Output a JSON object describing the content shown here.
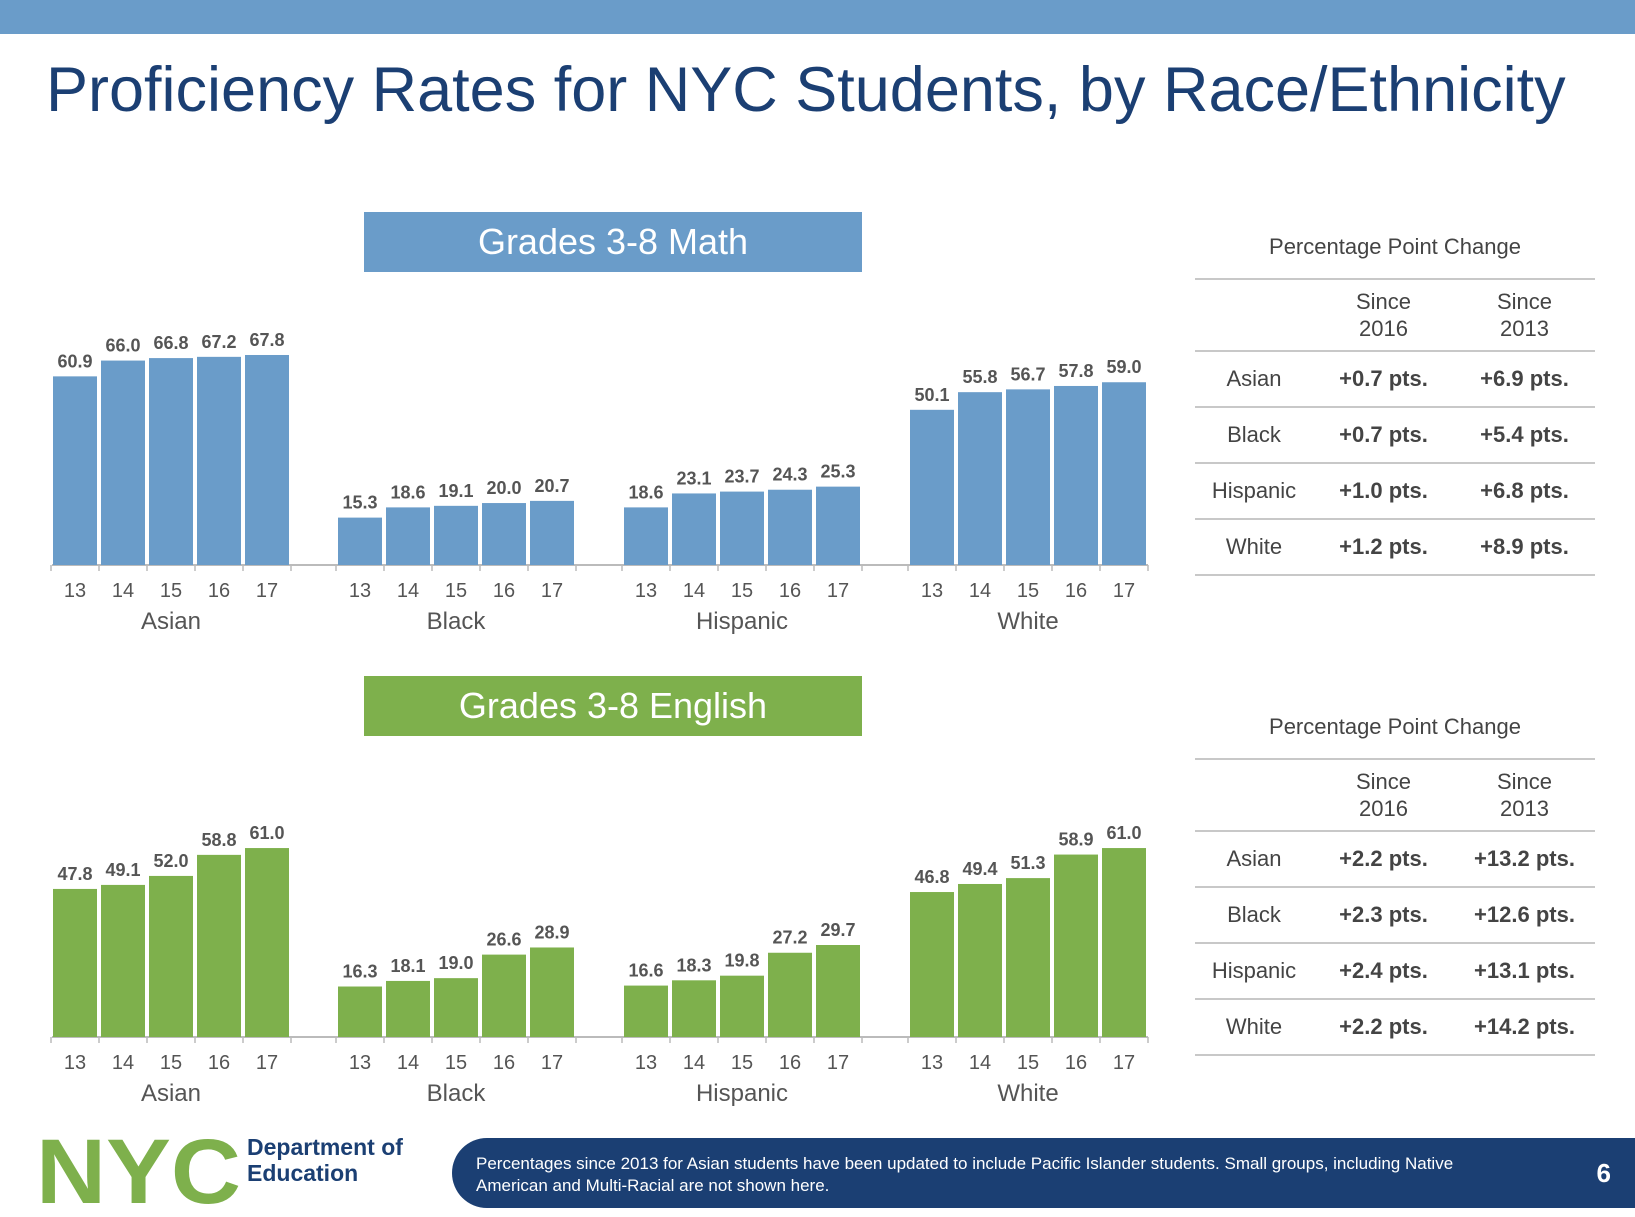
{
  "title": "Proficiency Rates for NYC Students, by Race/Ethnicity",
  "colors": {
    "math": "#6a9cc9",
    "english": "#7eb04c",
    "navy": "#1b3f73"
  },
  "chart_data": [
    {
      "type": "bar",
      "title": "Grades 3-8 Math",
      "groups": [
        "Asian",
        "Black",
        "Hispanic",
        "White"
      ],
      "categories": [
        "13",
        "14",
        "15",
        "16",
        "17"
      ],
      "series": [
        {
          "values": [
            60.9,
            66.0,
            66.8,
            67.2,
            67.8
          ]
        },
        {
          "values": [
            15.3,
            18.6,
            19.1,
            20.0,
            20.7
          ]
        },
        {
          "values": [
            18.6,
            23.1,
            23.7,
            24.3,
            25.3
          ]
        },
        {
          "values": [
            50.1,
            55.8,
            56.7,
            57.8,
            59.0
          ]
        }
      ],
      "ylim": [
        0,
        70
      ],
      "grid": false
    },
    {
      "type": "bar",
      "title": "Grades 3-8 English",
      "groups": [
        "Asian",
        "Black",
        "Hispanic",
        "White"
      ],
      "categories": [
        "13",
        "14",
        "15",
        "16",
        "17"
      ],
      "series": [
        {
          "values": [
            47.8,
            49.1,
            52.0,
            58.8,
            61.0
          ]
        },
        {
          "values": [
            16.3,
            18.1,
            19.0,
            26.6,
            28.9
          ]
        },
        {
          "values": [
            16.6,
            18.3,
            19.8,
            27.2,
            29.7
          ]
        },
        {
          "values": [
            46.8,
            49.4,
            51.3,
            58.9,
            61.0
          ]
        }
      ],
      "ylim": [
        0,
        70
      ],
      "grid": false
    }
  ],
  "math_change": {
    "title": "Percentage Point Change",
    "col1": [
      "Since",
      "2016"
    ],
    "col2": [
      "Since",
      "2013"
    ],
    "rows": [
      {
        "group": "Asian",
        "since2016": "+0.7 pts.",
        "since2013": "+6.9 pts."
      },
      {
        "group": "Black",
        "since2016": "+0.7 pts.",
        "since2013": "+5.4 pts."
      },
      {
        "group": "Hispanic",
        "since2016": "+1.0 pts.",
        "since2013": "+6.8 pts."
      },
      {
        "group": "White",
        "since2016": "+1.2 pts.",
        "since2013": "+8.9 pts."
      }
    ]
  },
  "english_change": {
    "title": "Percentage Point Change",
    "col1": [
      "Since",
      "2016"
    ],
    "col2": [
      "Since",
      "2013"
    ],
    "rows": [
      {
        "group": "Asian",
        "since2016": "+2.2 pts.",
        "since2013": "+13.2 pts."
      },
      {
        "group": "Black",
        "since2016": "+2.3 pts.",
        "since2013": "+12.6 pts."
      },
      {
        "group": "Hispanic",
        "since2016": "+2.4 pts.",
        "since2013": "+13.1 pts."
      },
      {
        "group": "White",
        "since2016": "+2.2 pts.",
        "since2013": "+14.2 pts."
      }
    ]
  },
  "logo": {
    "text": "NYC",
    "dept": [
      "Department of",
      "Education"
    ]
  },
  "footnote": "Percentages since 2013 for Asian students have been updated to include Pacific Islander students. Small groups, including Native American and Multi-Racial are not shown here.",
  "page_number": "6"
}
